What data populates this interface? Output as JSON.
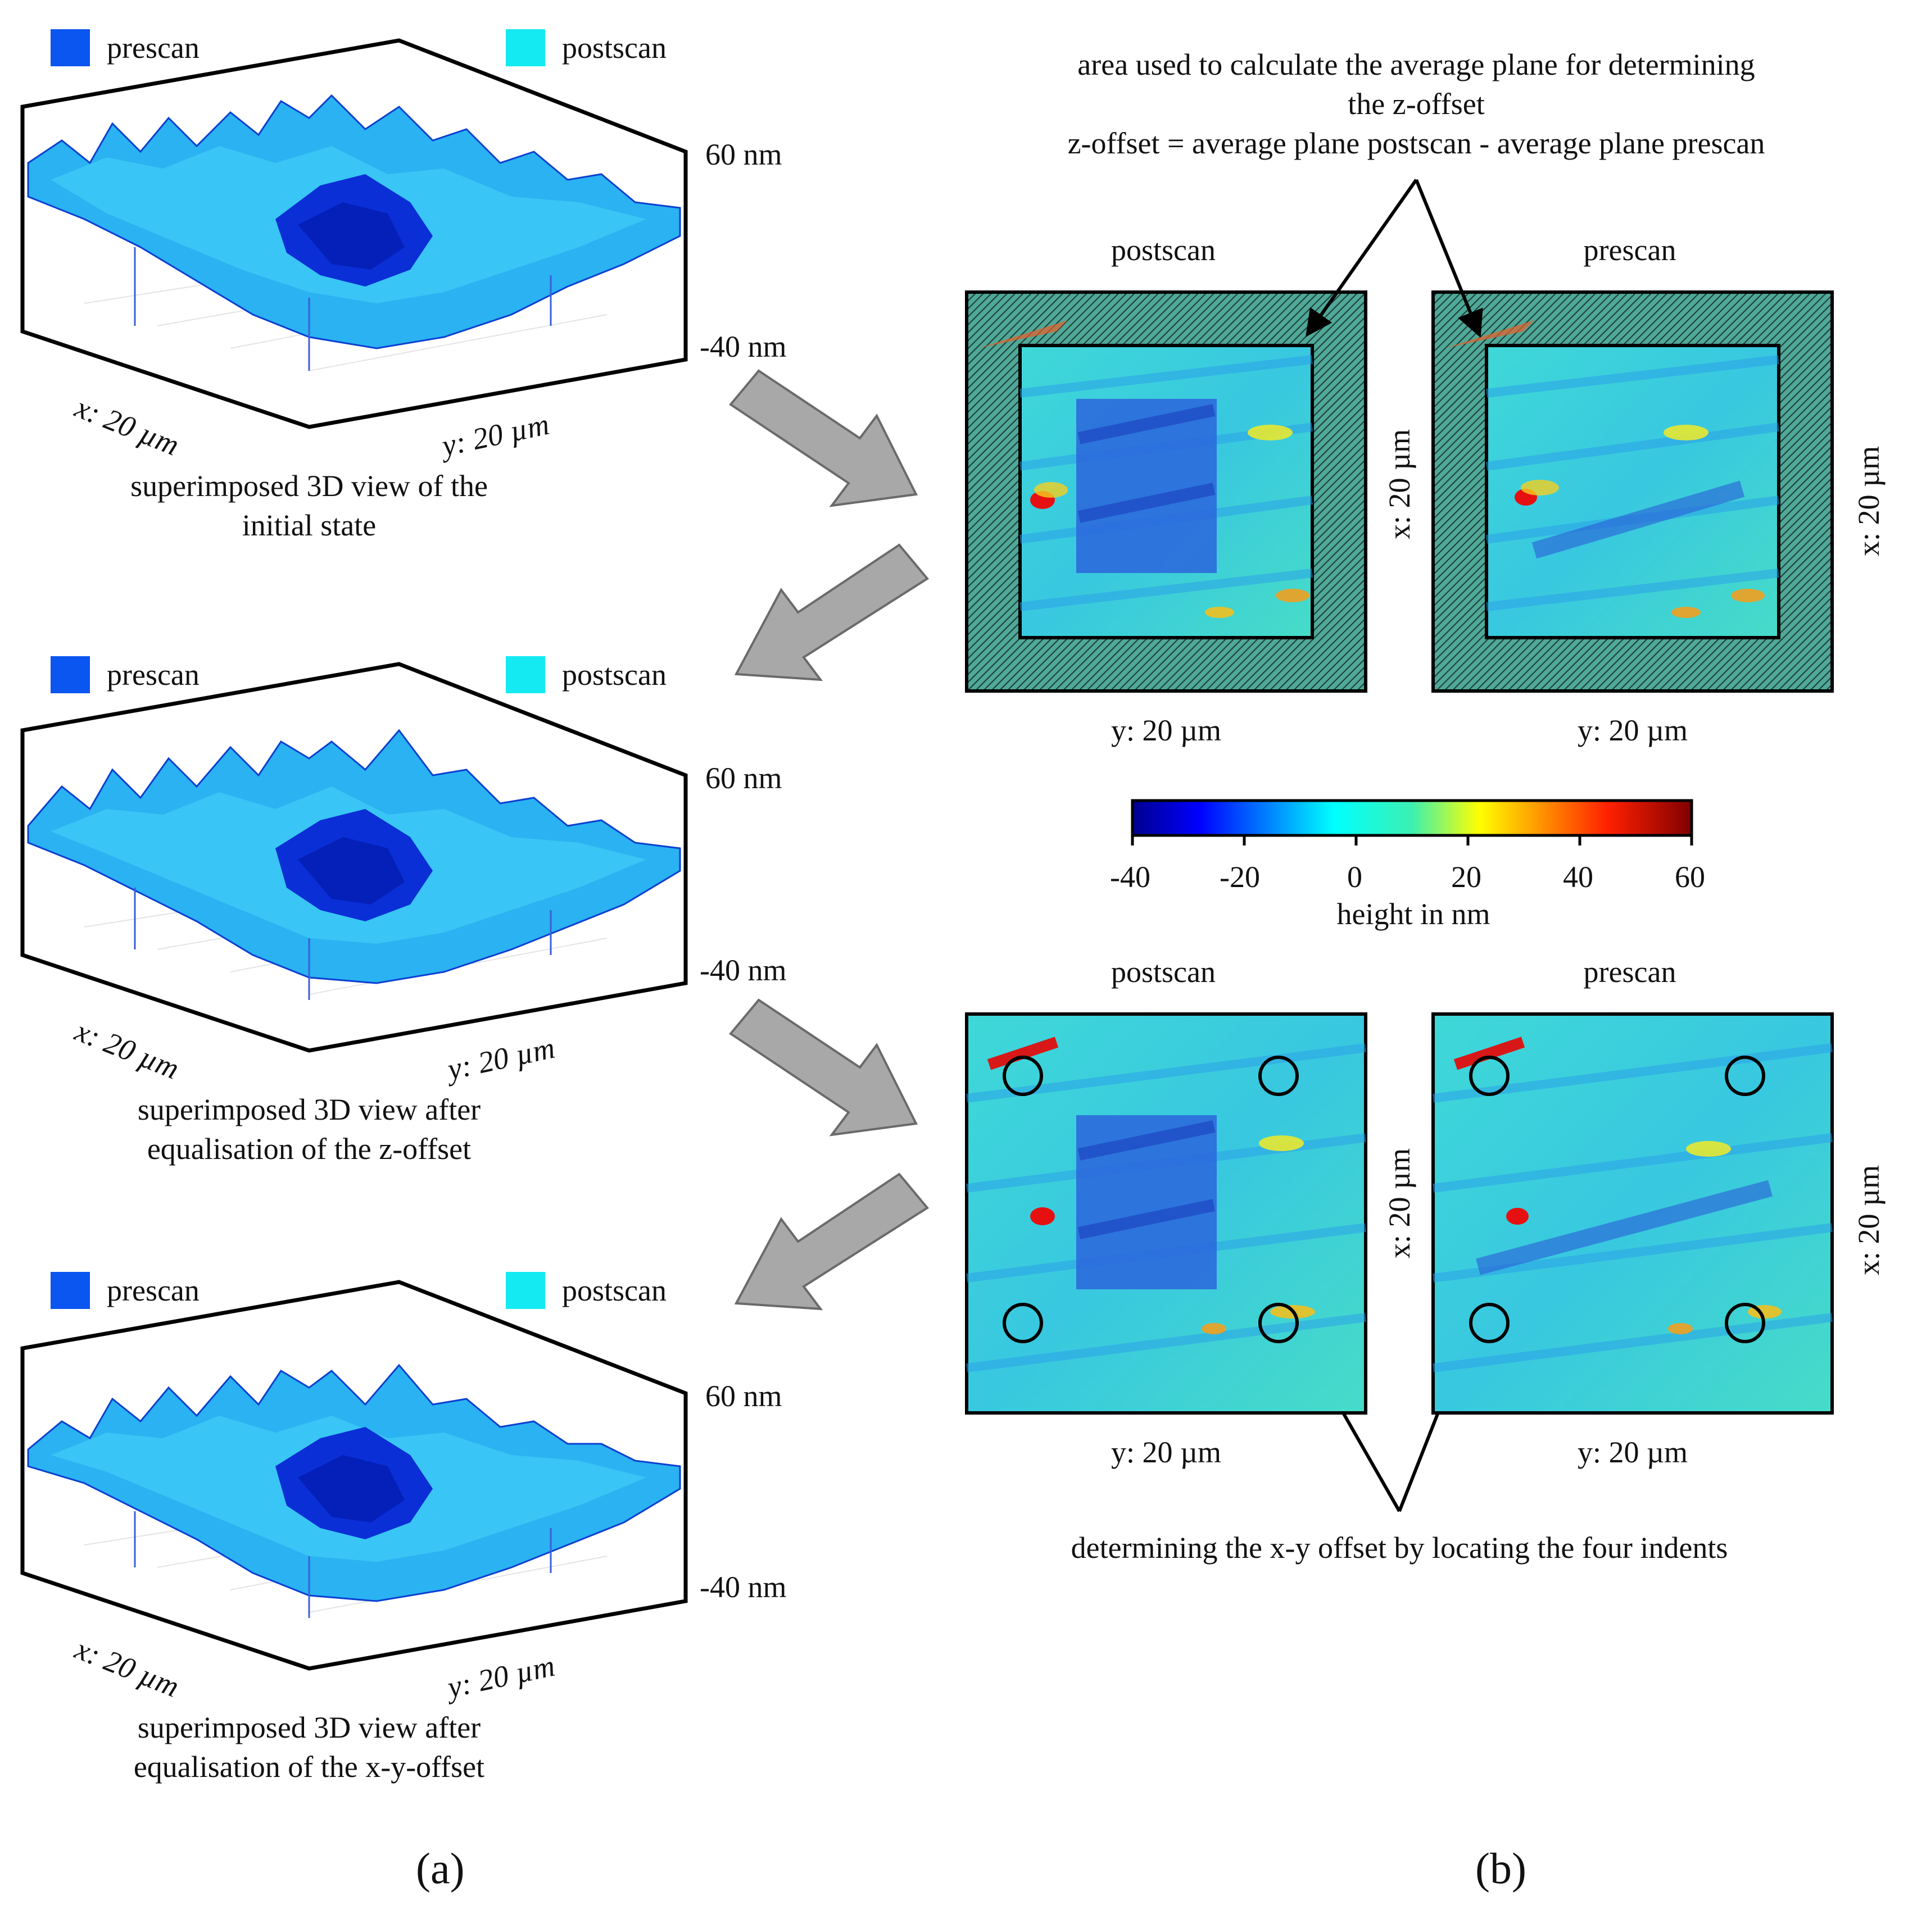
{
  "legend": {
    "prescan_label": "prescan",
    "postscan_label": "postscan",
    "prescan_color": "#0b55f0",
    "postscan_color": "#14eaf2"
  },
  "views_3d": [
    {
      "z_top": "60 nm",
      "z_bottom": "-40 nm",
      "x_axis": "x: 20 µm",
      "y_axis": "y: 20 µm",
      "caption_line1": "superimposed 3D view of the",
      "caption_line2": "initial state"
    },
    {
      "z_top": "60 nm",
      "z_bottom": "-40 nm",
      "x_axis": "x: 20 µm",
      "y_axis": "y: 20 µm",
      "caption_line1": "superimposed 3D view after",
      "caption_line2": "equalisation of the z-offset"
    },
    {
      "z_top": "60 nm",
      "z_bottom": "-40 nm",
      "x_axis": "x: 20 µm",
      "y_axis": "y: 20 µm",
      "caption_line1": "superimposed 3D view after",
      "caption_line2": "equalisation of the x-y-offset"
    }
  ],
  "annotation_top": {
    "line1": "area used to calculate the average plane for determining",
    "line2": "the z-offset",
    "line3": "z-offset = average plane postscan - average plane prescan"
  },
  "maps_top": {
    "left_title": "postscan",
    "right_title": "prescan",
    "left_x_axis": "x: 20 µm",
    "right_x_axis": "x: 20 µm",
    "left_y_axis": "y: 20 µm",
    "right_y_axis": "y: 20 µm"
  },
  "colorbar": {
    "ticks": [
      "-40",
      "-20",
      "0",
      "20",
      "40",
      "60"
    ],
    "label": "height in nm",
    "min": -40,
    "max": 60
  },
  "maps_bottom": {
    "left_title": "postscan",
    "right_title": "prescan",
    "left_x_axis": "x: 20 µm",
    "right_x_axis": "x: 20 µm",
    "left_y_axis": "y: 20 µm",
    "right_y_axis": "y: 20 µm"
  },
  "annotation_bottom": "determining the x-y offset by locating the four indents",
  "panel_labels": {
    "a": "(a)",
    "b": "(b)"
  }
}
